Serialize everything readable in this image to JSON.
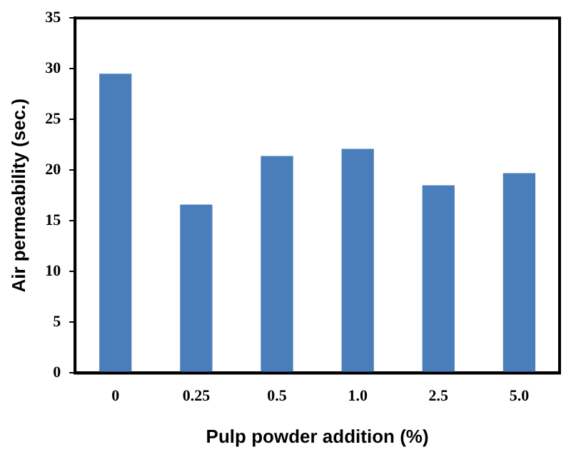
{
  "chart_data": {
    "type": "bar",
    "xlabel": "Pulp powder addition (%)",
    "ylabel": "Air permeability (sec.)",
    "categories": [
      "0",
      "0.25",
      "0.5",
      "1.0",
      "2.5",
      "5.0"
    ],
    "values": [
      29.5,
      16.6,
      21.4,
      22.1,
      18.5,
      19.7
    ],
    "color": "#4a7ebb",
    "ylim": [
      0,
      35
    ],
    "yticks": [
      0,
      5,
      10,
      15,
      20,
      25,
      30,
      35
    ],
    "grid": false,
    "legend": false
  }
}
